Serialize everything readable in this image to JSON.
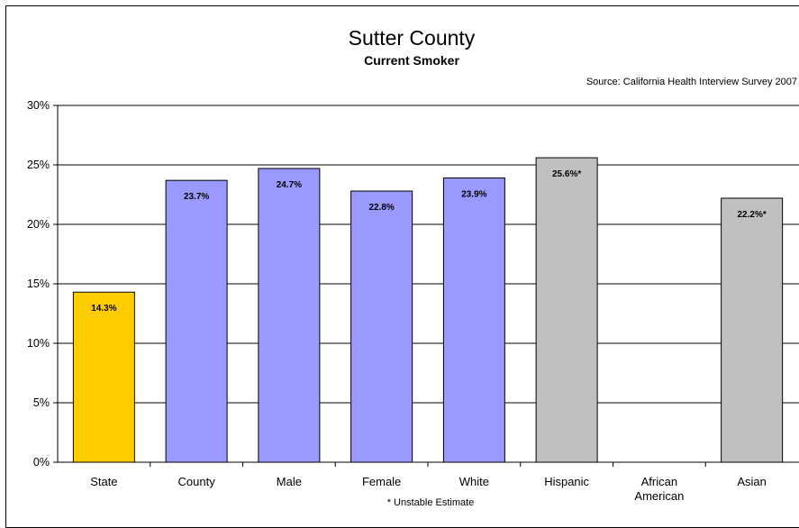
{
  "chart_data": {
    "type": "bar",
    "title": "Sutter County",
    "subtitle": "Current Smoker",
    "source": "Source: California Health Interview Survey 2007",
    "footnote": "* Unstable Estimate",
    "ylim": [
      0,
      30
    ],
    "y_ticks": [
      "0%",
      "5%",
      "10%",
      "15%",
      "20%",
      "25%",
      "30%"
    ],
    "y_tick_values": [
      0,
      5,
      10,
      15,
      20,
      25,
      30
    ],
    "grid": true,
    "categories": [
      "State",
      "County",
      "Male",
      "Female",
      "White",
      "Hispanic",
      "African\nAmerican",
      "Asian"
    ],
    "values": [
      14.3,
      23.7,
      24.7,
      22.8,
      23.9,
      25.6,
      null,
      22.2
    ],
    "data_labels": [
      "14.3%",
      "23.7%",
      "24.7%",
      "22.8%",
      "23.9%",
      "25.6%*",
      "",
      "22.2%*"
    ],
    "colors": [
      "#FFCC00",
      "#9999FF",
      "#9999FF",
      "#9999FF",
      "#9999FF",
      "#C0C0C0",
      "#C0C0C0",
      "#C0C0C0"
    ]
  }
}
